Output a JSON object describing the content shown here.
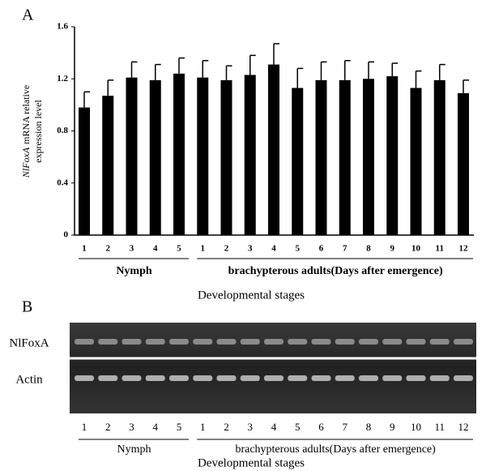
{
  "chart_data": [
    {
      "type": "bar",
      "panel_label": "A",
      "ylabel": {
        "gene": "NlFoxA",
        "lines": [
          "mRNA relative",
          "expression level"
        ]
      },
      "categories": [
        "1",
        "2",
        "3",
        "4",
        "5",
        "1",
        "2",
        "3",
        "4",
        "5",
        "6",
        "7",
        "8",
        "9",
        "10",
        "11",
        "12"
      ],
      "values": [
        0.98,
        1.07,
        1.21,
        1.19,
        1.24,
        1.21,
        1.19,
        1.23,
        1.31,
        1.13,
        1.19,
        1.19,
        1.2,
        1.22,
        1.13,
        1.19,
        1.09
      ],
      "errors": [
        0.12,
        0.12,
        0.12,
        0.12,
        0.12,
        0.13,
        0.11,
        0.15,
        0.16,
        0.15,
        0.14,
        0.15,
        0.13,
        0.1,
        0.13,
        0.12,
        0.1
      ],
      "color": "#000000",
      "ylim": [
        0,
        1.6
      ],
      "yticks": [
        0,
        0.4,
        0.8,
        1.2,
        1.6
      ],
      "groups": [
        "Nymph",
        "brachypterous adults(Days after emergence)"
      ],
      "xlabel": "Developmental stages"
    },
    {
      "type": "gel",
      "panel_label": "B",
      "rows": [
        "NlFoxA",
        "Actin"
      ],
      "lanes": [
        "1",
        "2",
        "3",
        "4",
        "5",
        "1",
        "2",
        "3",
        "4",
        "5",
        "6",
        "7",
        "8",
        "9",
        "10",
        "11",
        "12"
      ],
      "groups": [
        "Nymph",
        "brachypterous adults(Days after emergence)"
      ],
      "xlabel": "Developmental stages"
    }
  ]
}
